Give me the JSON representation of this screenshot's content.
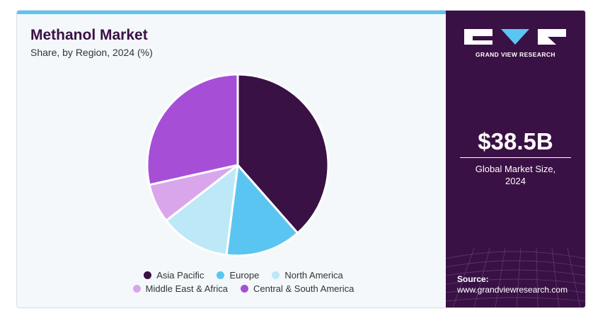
{
  "header": {
    "title": "Methanol Market",
    "subtitle": "Share, by Region, 2024 (%)"
  },
  "sidebar": {
    "logo_text": "GRAND VIEW RESEARCH",
    "market_value": "$38.5B",
    "market_caption_line1": "Global Market Size,",
    "market_caption_line2": "2024",
    "source_label": "Source:",
    "source_url": "www.grandviewresearch.com",
    "background_color": "#3a1144"
  },
  "chart_data": {
    "type": "pie",
    "title": "Methanol Market",
    "subtitle": "Share, by Region, 2024 (%)",
    "labels": [
      "Asia Pacific",
      "Europe",
      "North America",
      "Middle East & Africa",
      "Central & South America"
    ],
    "values": [
      38.5,
      13.5,
      12.5,
      7.0,
      28.5
    ],
    "colors": [
      "#3a1144",
      "#5bc5f2",
      "#bde8f8",
      "#d9a6ec",
      "#a64fd6"
    ],
    "start_angle_deg": 0,
    "direction": "clockwise",
    "legend_position": "bottom"
  }
}
